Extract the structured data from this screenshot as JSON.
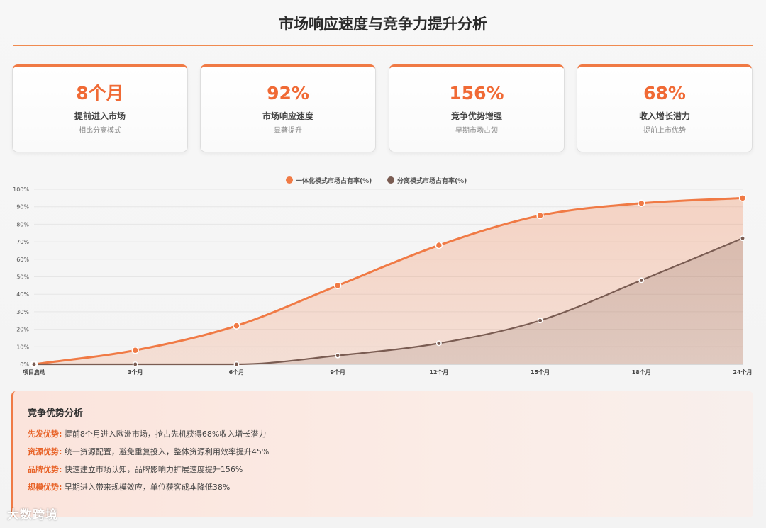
{
  "title": "市场响应速度与竞争力提升分析",
  "cards": [
    {
      "value": "8个月",
      "label": "提前进入市场",
      "sub": "相比分离模式"
    },
    {
      "value": "92%",
      "label": "市场响应速度",
      "sub": "显著提升"
    },
    {
      "value": "156%",
      "label": "竞争优势增强",
      "sub": "早期市场占领"
    },
    {
      "value": "68%",
      "label": "收入增长潜力",
      "sub": "提前上市优势"
    }
  ],
  "chart_data": {
    "type": "area",
    "categories": [
      "项目启动",
      "3个月",
      "6个月",
      "9个月",
      "12个月",
      "15个月",
      "18个月",
      "24个月"
    ],
    "series": [
      {
        "name": "一体化模式市场占有率(%)",
        "values": [
          0,
          8,
          22,
          45,
          68,
          85,
          92,
          95
        ],
        "color": "#f07a45"
      },
      {
        "name": "分离模式市场占有率(%)",
        "values": [
          0,
          0,
          0,
          5,
          12,
          25,
          48,
          72
        ],
        "color": "#7a5c52"
      }
    ],
    "ylim": [
      0,
      100
    ],
    "yticks": [
      "0%",
      "10%",
      "20%",
      "30%",
      "40%",
      "50%",
      "60%",
      "70%",
      "80%",
      "90%",
      "100%"
    ],
    "legend_position": "top-center",
    "grid": true
  },
  "analysis": {
    "heading": "竞争优势分析",
    "items": [
      {
        "key": "先发优势:",
        "text": "提前8个月进入欧洲市场，抢占先机获得68%收入增长潜力"
      },
      {
        "key": "资源优势:",
        "text": "统一资源配置，避免重复投入，整体资源利用效率提升45%"
      },
      {
        "key": "品牌优势:",
        "text": "快速建立市场认知，品牌影响力扩展速度提升156%"
      },
      {
        "key": "规模优势:",
        "text": "早期进入带来规模效应，单位获客成本降低38%"
      }
    ]
  },
  "watermark": "大数跨境"
}
